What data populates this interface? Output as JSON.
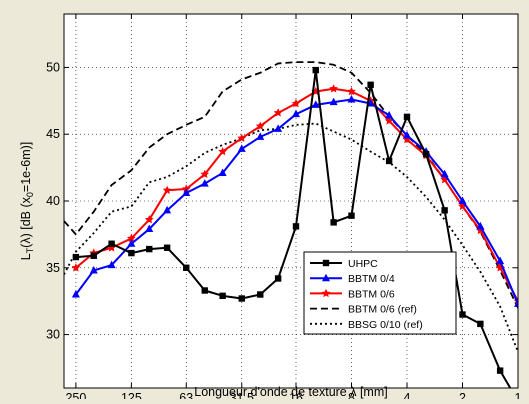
{
  "chart_data": {
    "type": "line",
    "xlabel": "Longueur d'onde de texture λ [mm]",
    "ylabel_parts": {
      "main": "L",
      "sub1": "T",
      "mid": "(λ)  [dB (x",
      "sub2": "0",
      "end": "=1e-6m)]"
    },
    "x_scale": "log",
    "x_reversed": true,
    "xlim": [
      290,
      1
    ],
    "ylim": [
      26,
      54
    ],
    "grid": true,
    "legend_position": "bottom-right",
    "x_ticks": [
      {
        "value": 250,
        "label": "250"
      },
      {
        "value": 125,
        "label": "125"
      },
      {
        "value": 63,
        "label": "63"
      },
      {
        "value": 31.5,
        "label": "31.5"
      },
      {
        "value": 16,
        "label": "16"
      },
      {
        "value": 8,
        "label": "8"
      },
      {
        "value": 4,
        "label": "4"
      },
      {
        "value": 2,
        "label": "2"
      },
      {
        "value": 1,
        "label": "1"
      }
    ],
    "y_ticks": [
      {
        "value": 30,
        "label": "30"
      },
      {
        "value": 35,
        "label": "35"
      },
      {
        "value": 40,
        "label": "40"
      },
      {
        "value": 45,
        "label": "45"
      },
      {
        "value": 50,
        "label": "50"
      }
    ],
    "series": [
      {
        "name": "UHPC",
        "color": "#000000",
        "style": "solid",
        "marker": "square",
        "x": [
          250,
          200,
          160,
          125,
          100,
          80,
          63,
          50,
          40,
          31.5,
          25,
          20,
          16,
          12.5,
          10,
          8,
          6.3,
          5,
          4,
          3.15,
          2.5,
          2,
          1.6,
          1.25,
          1
        ],
        "y": [
          35.8,
          35.9,
          36.8,
          36.1,
          36.4,
          36.5,
          35,
          33.3,
          32.9,
          32.7,
          33,
          34.2,
          38.1,
          49.8,
          38.4,
          38.9,
          48.7,
          43,
          46.3,
          43.5,
          39.3,
          31.5,
          30.8,
          27.3,
          25
        ]
      },
      {
        "name": "BBTM 0/4",
        "color": "#0000ff",
        "style": "solid",
        "marker": "triangle",
        "x": [
          250,
          200,
          160,
          125,
          100,
          80,
          63,
          50,
          40,
          31.5,
          25,
          20,
          16,
          12.5,
          10,
          8,
          6.3,
          5,
          4,
          3.15,
          2.5,
          2,
          1.6,
          1.25,
          1
        ],
        "y": [
          33,
          34.8,
          35.2,
          36.8,
          37.9,
          39.3,
          40.6,
          41.3,
          42.1,
          43.9,
          44.8,
          45.4,
          46.5,
          47.2,
          47.4,
          47.6,
          47.3,
          46.4,
          44.9,
          43.7,
          42,
          40,
          38.1,
          35.5,
          32.3
        ]
      },
      {
        "name": "BBTM 0/6",
        "color": "#ff0000",
        "style": "solid",
        "marker": "star",
        "x": [
          250,
          200,
          160,
          125,
          100,
          80,
          63,
          50,
          40,
          31.5,
          25,
          20,
          16,
          12.5,
          10,
          8,
          6.3,
          5,
          4,
          3.15,
          2.5,
          2,
          1.6,
          1.25,
          1
        ],
        "y": [
          35,
          36.1,
          36.5,
          37.2,
          38.6,
          40.8,
          40.9,
          42,
          43.7,
          44.7,
          45.6,
          46.6,
          47.3,
          48.2,
          48.4,
          48.2,
          47.5,
          46,
          44.6,
          43.4,
          41.6,
          39.6,
          37.8,
          35,
          32.5
        ]
      },
      {
        "name": "BBTM 0/6 (ref)",
        "color": "#000000",
        "style": "dashed",
        "marker": "none",
        "x": [
          290,
          250,
          200,
          160,
          125,
          100,
          80,
          63,
          50,
          40,
          31.5,
          25,
          20,
          16,
          12.5,
          10,
          8,
          6.3,
          5,
          4,
          3.15,
          2.5,
          2,
          1.6,
          1.25,
          1
        ],
        "y": [
          38.5,
          37.5,
          39.2,
          41.2,
          42.3,
          44,
          45,
          45.7,
          46.3,
          48.2,
          49.1,
          49.6,
          50.3,
          50.4,
          50.4,
          50.2,
          49.6,
          48.1,
          46.3,
          44.9,
          43.5,
          41.6,
          39.6,
          37.7,
          34.8,
          32
        ]
      },
      {
        "name": "BBSG 0/10 (ref)",
        "color": "#000000",
        "style": "dotted",
        "marker": "none",
        "x": [
          290,
          250,
          200,
          160,
          125,
          100,
          80,
          63,
          50,
          40,
          31.5,
          25,
          20,
          16,
          12.5,
          10,
          8,
          6.3,
          5,
          4,
          3.15,
          2.5,
          2,
          1.6,
          1.25,
          1
        ],
        "y": [
          34.5,
          36.2,
          37.6,
          39.2,
          39.6,
          41.4,
          41.8,
          42.6,
          43.6,
          44.2,
          44.7,
          45.3,
          45.4,
          45.7,
          45.8,
          45.2,
          44.6,
          43.7,
          42.9,
          41.8,
          40.3,
          38.6,
          36.7,
          34.7,
          32.1,
          28.7
        ]
      }
    ]
  }
}
